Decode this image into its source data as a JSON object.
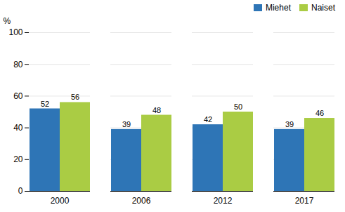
{
  "chart_data": {
    "type": "bar",
    "ylabel": "%",
    "categories": [
      "2000",
      "2006",
      "2012",
      "2017"
    ],
    "series": [
      {
        "name": "Miehet",
        "color": "#2E75B6",
        "values": [
          52,
          39,
          42,
          39
        ]
      },
      {
        "name": "Naiset",
        "color": "#AACC44",
        "values": [
          56,
          48,
          50,
          46
        ]
      }
    ],
    "ylim": [
      0,
      100
    ],
    "yticks": [
      0,
      20,
      40,
      60,
      80,
      100
    ],
    "grid": true,
    "legend": "upper right",
    "data_labels": true
  }
}
